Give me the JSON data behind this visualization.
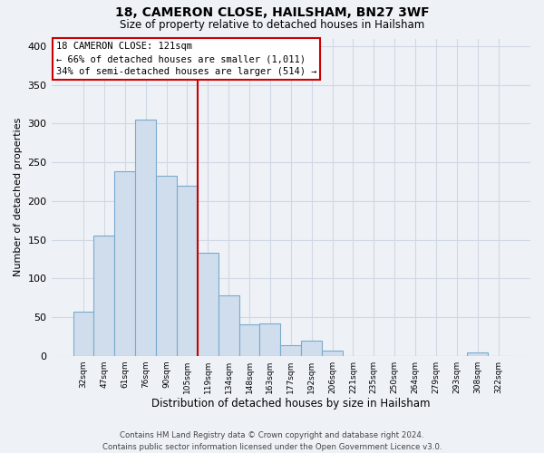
{
  "title": "18, CAMERON CLOSE, HAILSHAM, BN27 3WF",
  "subtitle": "Size of property relative to detached houses in Hailsham",
  "xlabel": "Distribution of detached houses by size in Hailsham",
  "ylabel": "Number of detached properties",
  "bar_color": "#cfdded",
  "bar_edge_color": "#7aaacb",
  "background_color": "#eef2f7",
  "grid_color": "#d0d8e4",
  "categories": [
    "32sqm",
    "47sqm",
    "61sqm",
    "76sqm",
    "90sqm",
    "105sqm",
    "119sqm",
    "134sqm",
    "148sqm",
    "163sqm",
    "177sqm",
    "192sqm",
    "206sqm",
    "221sqm",
    "235sqm",
    "250sqm",
    "264sqm",
    "279sqm",
    "293sqm",
    "308sqm",
    "322sqm"
  ],
  "values": [
    57,
    155,
    238,
    305,
    233,
    220,
    133,
    78,
    41,
    42,
    14,
    20,
    7,
    0,
    0,
    0,
    0,
    0,
    0,
    4,
    0
  ],
  "ylim": [
    0,
    410
  ],
  "yticks": [
    0,
    50,
    100,
    150,
    200,
    250,
    300,
    350,
    400
  ],
  "marker_label": "18 CAMERON CLOSE: 121sqm",
  "annotation_line1": "← 66% of detached houses are smaller (1,011)",
  "annotation_line2": "34% of semi-detached houses are larger (514) →",
  "footer1": "Contains HM Land Registry data © Crown copyright and database right 2024.",
  "footer2": "Contains public sector information licensed under the Open Government Licence v3.0.",
  "marker_color": "#cc0000",
  "annotation_box_color": "#ffffff",
  "annotation_border_color": "#cc0000",
  "marker_bin_index": 6
}
